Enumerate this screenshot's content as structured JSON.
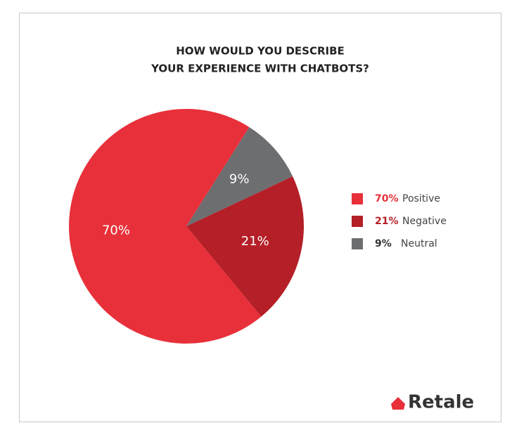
{
  "chart_data": {
    "type": "pie",
    "title": [
      "HOW WOULD YOU DESCRIBE",
      "YOUR EXPERIENCE WITH CHATBOTS?"
    ],
    "categories": [
      "Positive",
      "Negative",
      "Neutral"
    ],
    "values": [
      70,
      21,
      9
    ],
    "value_labels": [
      "70%",
      "21%",
      "9%"
    ],
    "colors": [
      "#e8303a",
      "#b51f27",
      "#6d6e70"
    ],
    "legend": "right",
    "logo": "Retale"
  }
}
